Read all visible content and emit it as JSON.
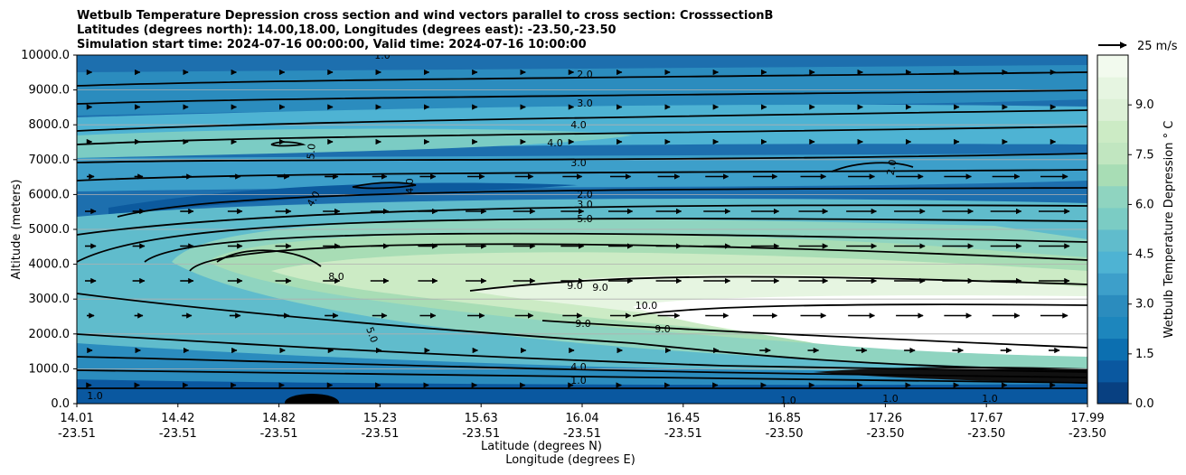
{
  "chart_data": {
    "type": "contour cross section with wind vectors",
    "title_lines": [
      "Wetbulb Temperature Depression cross section and wind vectors parallel to cross section: CrosssectionB",
      "Latitudes (degrees north): 14.00,18.00, Longitudes (degrees east): -23.50,-23.50",
      "Simulation start time: 2024-07-16 00:00:00, Valid time: 2024-07-16 10:00:00"
    ],
    "ylabel": "Altitude (meters)",
    "xlabel_lines": [
      "Latitude (degrees N)",
      "Longitude (degrees E)"
    ],
    "ylim": [
      0,
      10000
    ],
    "yticks": [
      "0.0",
      "1000.0",
      "2000.0",
      "3000.0",
      "4000.0",
      "5000.0",
      "6000.0",
      "7000.0",
      "8000.0",
      "9000.0",
      "10000.0"
    ],
    "xticks": [
      {
        "lat": "14.01",
        "lon": "-23.51"
      },
      {
        "lat": "14.42",
        "lon": "-23.51"
      },
      {
        "lat": "14.82",
        "lon": "-23.51"
      },
      {
        "lat": "15.23",
        "lon": "-23.51"
      },
      {
        "lat": "15.63",
        "lon": "-23.51"
      },
      {
        "lat": "16.04",
        "lon": "-23.51"
      },
      {
        "lat": "16.45",
        "lon": "-23.51"
      },
      {
        "lat": "16.85",
        "lon": "-23.50"
      },
      {
        "lat": "17.26",
        "lon": "-23.50"
      },
      {
        "lat": "17.67",
        "lon": "-23.50"
      },
      {
        "lat": "17.99",
        "lon": "-23.50"
      }
    ],
    "grid": "horizontal",
    "colorbar": {
      "label": "Wetbulb Temperature Depression ° C",
      "ticks": [
        "0.0",
        "1.5",
        "3.0",
        "4.5",
        "6.0",
        "7.5",
        "9.0"
      ],
      "range": [
        0,
        10.5
      ],
      "colors": [
        "#084081",
        "#0a58a0",
        "#0c6fb0",
        "#1d86bd",
        "#2b8cbe",
        "#3d9fca",
        "#4eb3d3",
        "#60bccc",
        "#7bccc4",
        "#8fd4c0",
        "#a8ddb5",
        "#c1e6c0",
        "#ccebc5",
        "#dcf0d6",
        "#e6f5e1",
        "#f2faee"
      ]
    },
    "quiver_key": "25 m/s",
    "contour_levels": [
      "1.0",
      "2.0",
      "3.0",
      "4.0",
      "5.0",
      "8.0",
      "9.0",
      "10.0"
    ]
  }
}
